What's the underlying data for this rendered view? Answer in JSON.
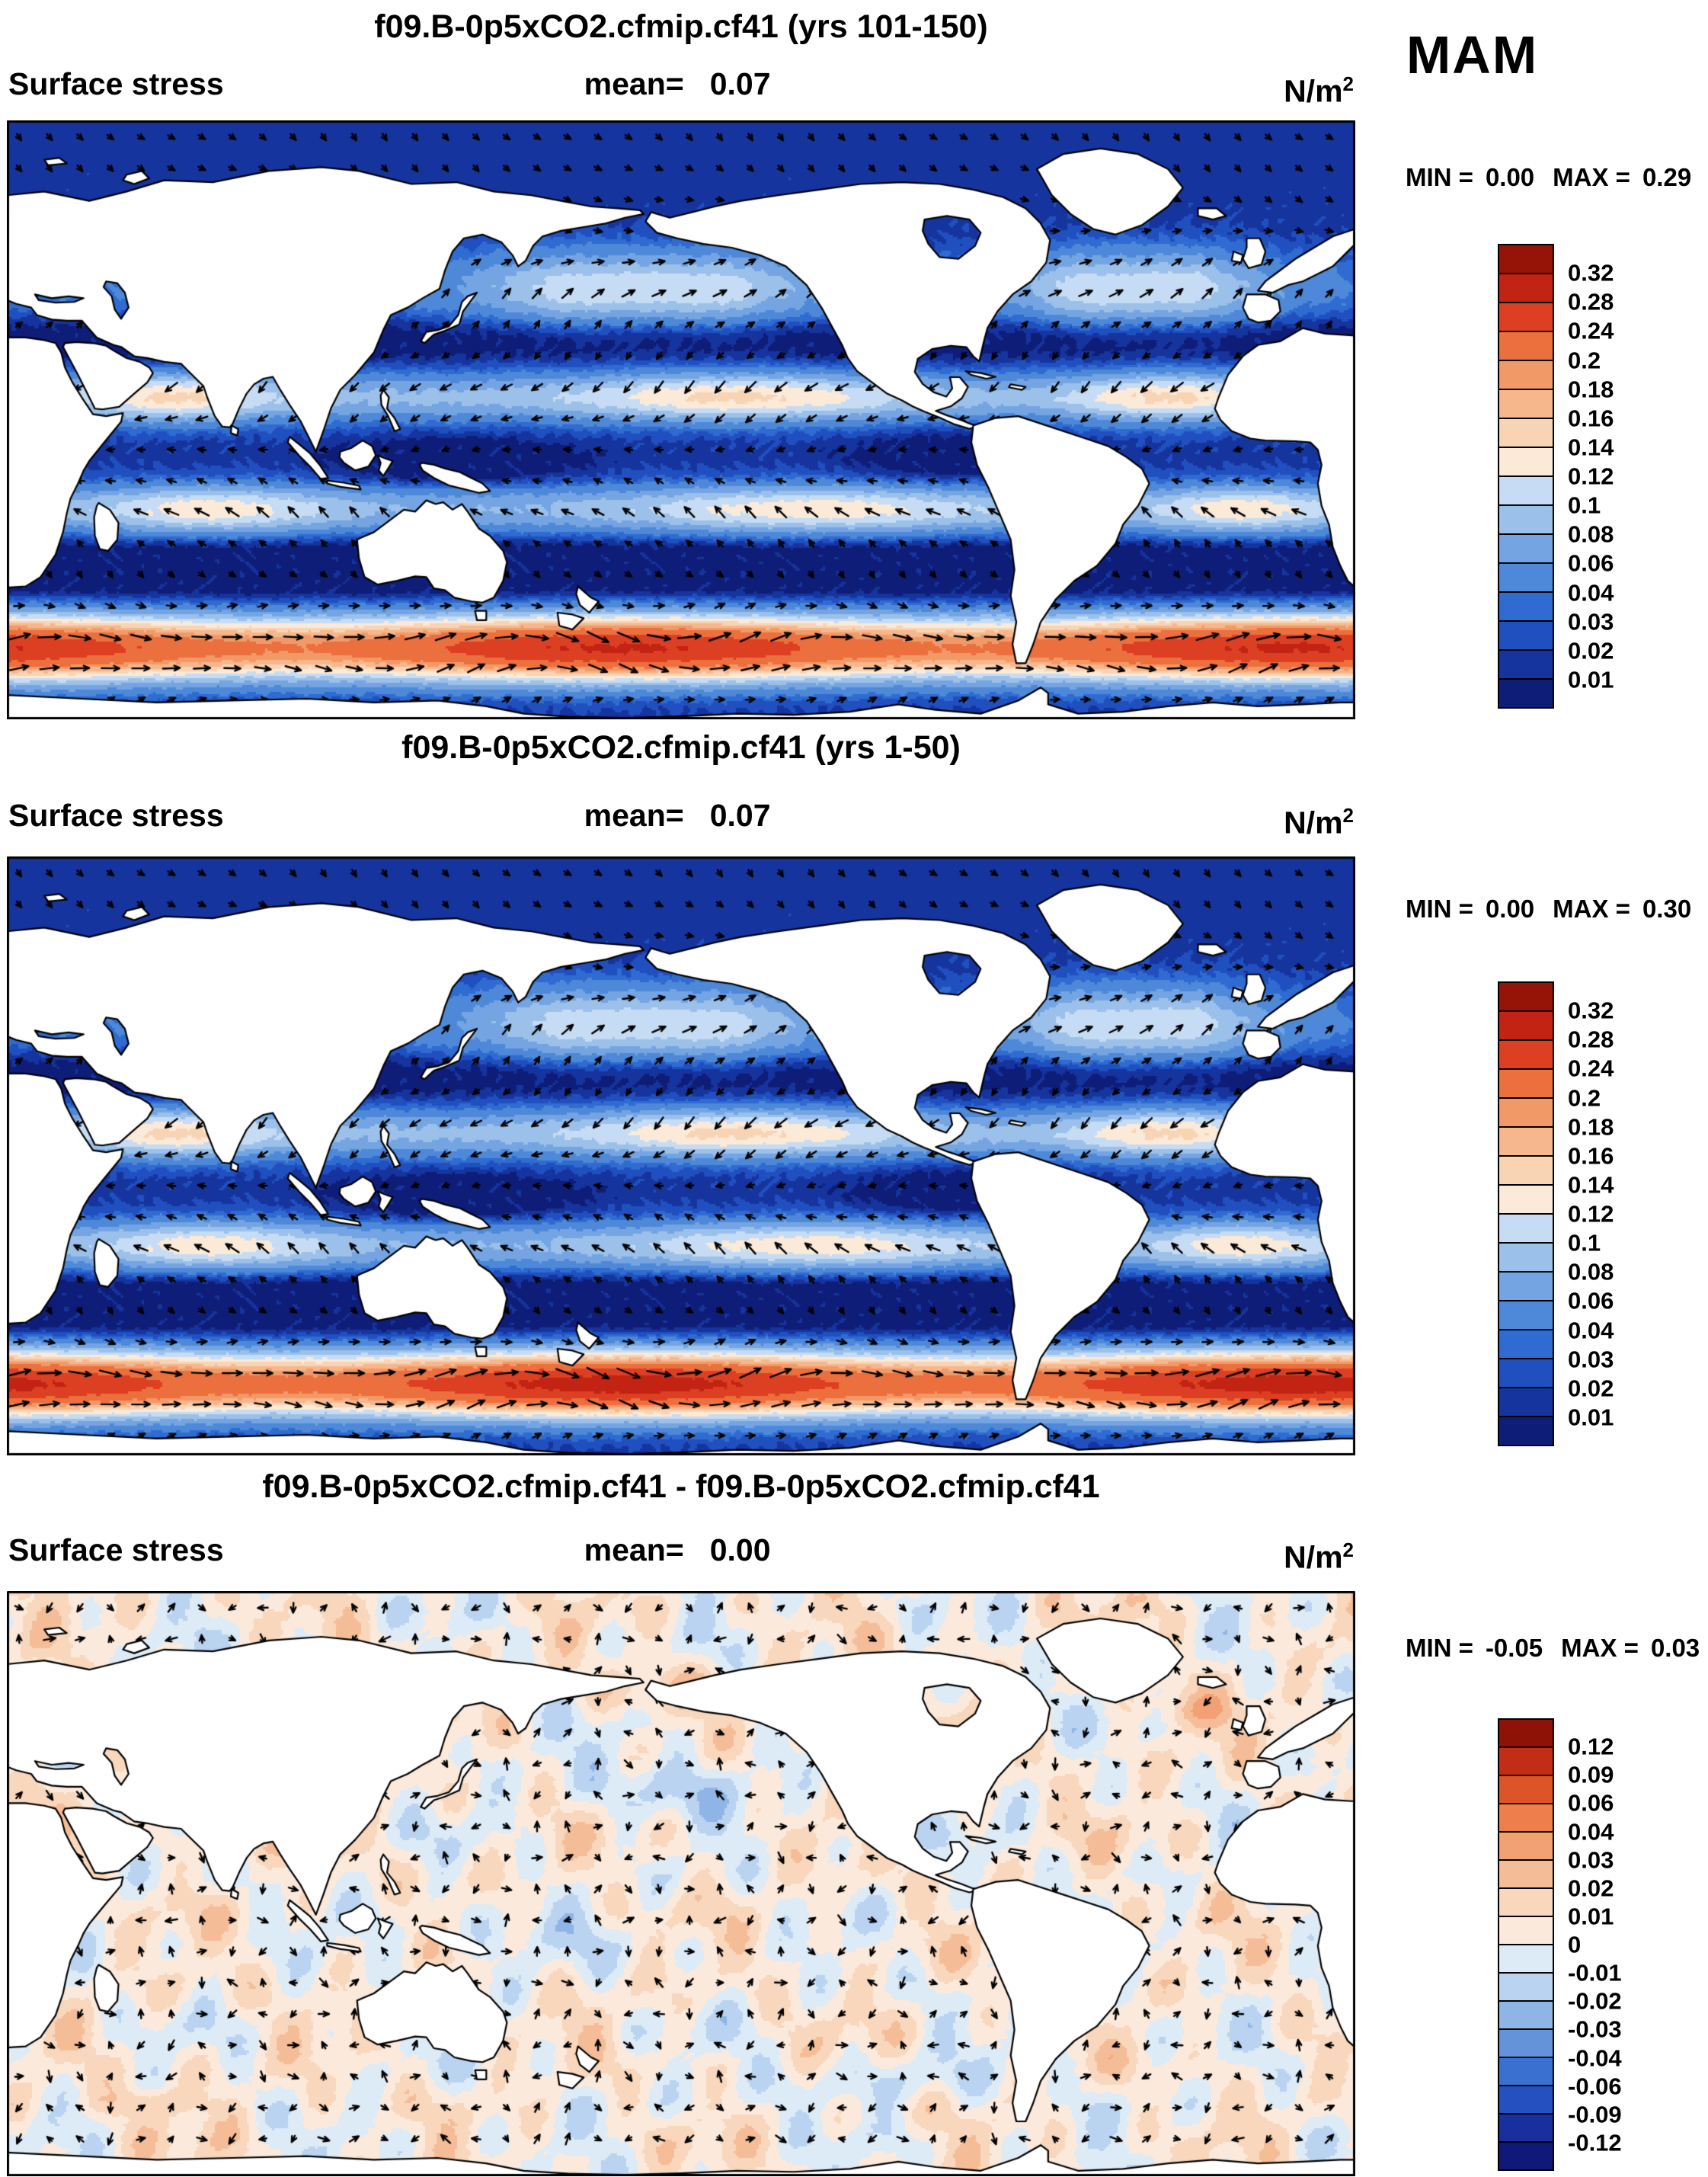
{
  "season_label": "MAM",
  "panels": [
    {
      "title": "f09.B-0p5xCO2.cfmip.cf41 (yrs 101-150)",
      "variable": "Surface stress",
      "mean_label": "mean=",
      "mean_value": "0.07",
      "units_base": "N/m",
      "units_exponent": "2",
      "min_label": "MIN =",
      "min_value": "0.00",
      "max_label": "MAX =",
      "max_value": "0.29",
      "colorbar_ticks": [
        "0.32",
        "0.28",
        "0.24",
        "0.2",
        "0.18",
        "0.16",
        "0.14",
        "0.12",
        "0.1",
        "0.08",
        "0.06",
        "0.04",
        "0.03",
        "0.02",
        "0.01"
      ],
      "colorbar_colors": [
        "#951407",
        "#C32313",
        "#DD3F23",
        "#EC6F3E",
        "#F29A67",
        "#F6B78C",
        "#F9D4B4",
        "#FBEAD7",
        "#C6DCF4",
        "#9BC0EA",
        "#74A5E2",
        "#4E88D8",
        "#2F6BD0",
        "#2050C0",
        "#16349E",
        "#0E1D78"
      ]
    },
    {
      "title": "f09.B-0p5xCO2.cfmip.cf41 (yrs 1-50)",
      "variable": "Surface stress",
      "mean_label": "mean=",
      "mean_value": "0.07",
      "units_base": "N/m",
      "units_exponent": "2",
      "min_label": "MIN =",
      "min_value": "0.00",
      "max_label": "MAX =",
      "max_value": "0.30",
      "colorbar_ticks": [
        "0.32",
        "0.28",
        "0.24",
        "0.2",
        "0.18",
        "0.16",
        "0.14",
        "0.12",
        "0.1",
        "0.08",
        "0.06",
        "0.04",
        "0.03",
        "0.02",
        "0.01"
      ],
      "colorbar_colors": [
        "#951407",
        "#C32313",
        "#DD3F23",
        "#EC6F3E",
        "#F29A67",
        "#F6B78C",
        "#F9D4B4",
        "#FBEAD7",
        "#C6DCF4",
        "#9BC0EA",
        "#74A5E2",
        "#4E88D8",
        "#2F6BD0",
        "#2050C0",
        "#16349E",
        "#0E1D78"
      ]
    },
    {
      "title": "f09.B-0p5xCO2.cfmip.cf41 - f09.B-0p5xCO2.cfmip.cf41",
      "variable": "Surface stress",
      "mean_label": "mean=",
      "mean_value": "0.00",
      "units_base": "N/m",
      "units_exponent": "2",
      "min_label": "MIN =",
      "min_value": "-0.05",
      "max_label": "MAX =",
      "max_value": "0.03",
      "colorbar_ticks": [
        "0.12",
        "0.09",
        "0.06",
        "0.04",
        "0.03",
        "0.02",
        "0.01",
        "0",
        "-0.01",
        "-0.02",
        "-0.03",
        "-0.04",
        "-0.06",
        "-0.09",
        "-0.12"
      ],
      "colorbar_colors": [
        "#8F1207",
        "#C22D15",
        "#DE5429",
        "#EC7F4B",
        "#F1A173",
        "#F5BD97",
        "#F8D7BC",
        "#FBEADB",
        "#DDEBF7",
        "#B9D3F0",
        "#8FB4E6",
        "#6593DA",
        "#3A70D0",
        "#2450C0",
        "#1A2F9E",
        "#10187A"
      ]
    }
  ],
  "chart_data": [
    {
      "type": "heatmap",
      "subtype": "global filled-contour map with wind stress vector overlay",
      "title": "f09.B-0p5xCO2.cfmip.cf41 (yrs 101-150)",
      "variable": "Surface stress",
      "season": "MAM",
      "units": "N/m^2",
      "mean": 0.07,
      "min": 0.0,
      "max": 0.29,
      "contour_levels": [
        0.01,
        0.02,
        0.03,
        0.04,
        0.06,
        0.08,
        0.1,
        0.12,
        0.14,
        0.16,
        0.18,
        0.2,
        0.24,
        0.28,
        0.32
      ],
      "palette_low_to_high": [
        "#0E1D78",
        "#16349E",
        "#2050C0",
        "#2F6BD0",
        "#4E88D8",
        "#74A5E2",
        "#9BC0EA",
        "#C6DCF4",
        "#FBEAD7",
        "#F9D4B4",
        "#F6B78C",
        "#F29A67",
        "#EC6F3E",
        "#DD3F23",
        "#C32313",
        "#951407"
      ],
      "legend_position": "right",
      "notes": "Low stress (blue) over tropical and subtropical oceans, high stress (orange/red band) over Southern Ocean westerlies; arrows show stress direction"
    },
    {
      "type": "heatmap",
      "subtype": "global filled-contour map with wind stress vector overlay",
      "title": "f09.B-0p5xCO2.cfmip.cf41 (yrs 1-50)",
      "variable": "Surface stress",
      "season": "MAM",
      "units": "N/m^2",
      "mean": 0.07,
      "min": 0.0,
      "max": 0.3,
      "contour_levels": [
        0.01,
        0.02,
        0.03,
        0.04,
        0.06,
        0.08,
        0.1,
        0.12,
        0.14,
        0.16,
        0.18,
        0.2,
        0.24,
        0.28,
        0.32
      ],
      "palette_low_to_high": [
        "#0E1D78",
        "#16349E",
        "#2050C0",
        "#2F6BD0",
        "#4E88D8",
        "#74A5E2",
        "#9BC0EA",
        "#C6DCF4",
        "#FBEAD7",
        "#F9D4B4",
        "#F6B78C",
        "#F29A67",
        "#EC6F3E",
        "#DD3F23",
        "#C32313",
        "#951407"
      ],
      "legend_position": "right",
      "notes": "Same field for years 1-50; pattern nearly identical to years 101-150"
    },
    {
      "type": "heatmap",
      "subtype": "global difference map with vector overlay",
      "title": "f09.B-0p5xCO2.cfmip.cf41 - f09.B-0p5xCO2.cfmip.cf41",
      "variable": "Surface stress",
      "season": "MAM",
      "units": "N/m^2",
      "mean": 0.0,
      "min": -0.05,
      "max": 0.03,
      "contour_levels": [
        -0.12,
        -0.09,
        -0.06,
        -0.04,
        -0.03,
        -0.02,
        -0.01,
        0,
        0.01,
        0.02,
        0.03,
        0.04,
        0.06,
        0.09,
        0.12
      ],
      "palette_low_to_high": [
        "#10187A",
        "#1A2F9E",
        "#2450C0",
        "#3A70D0",
        "#6593DA",
        "#8FB4E6",
        "#B9D3F0",
        "#DDEBF7",
        "#FBEADB",
        "#F8D7BC",
        "#F5BD97",
        "#F1A173",
        "#EC7F4B",
        "#DE5429",
        "#C22D15",
        "#8F1207"
      ],
      "legend_position": "right",
      "notes": "Differences are near zero everywhere; pale pink/pale blue mottling within +/-0.02"
    }
  ]
}
